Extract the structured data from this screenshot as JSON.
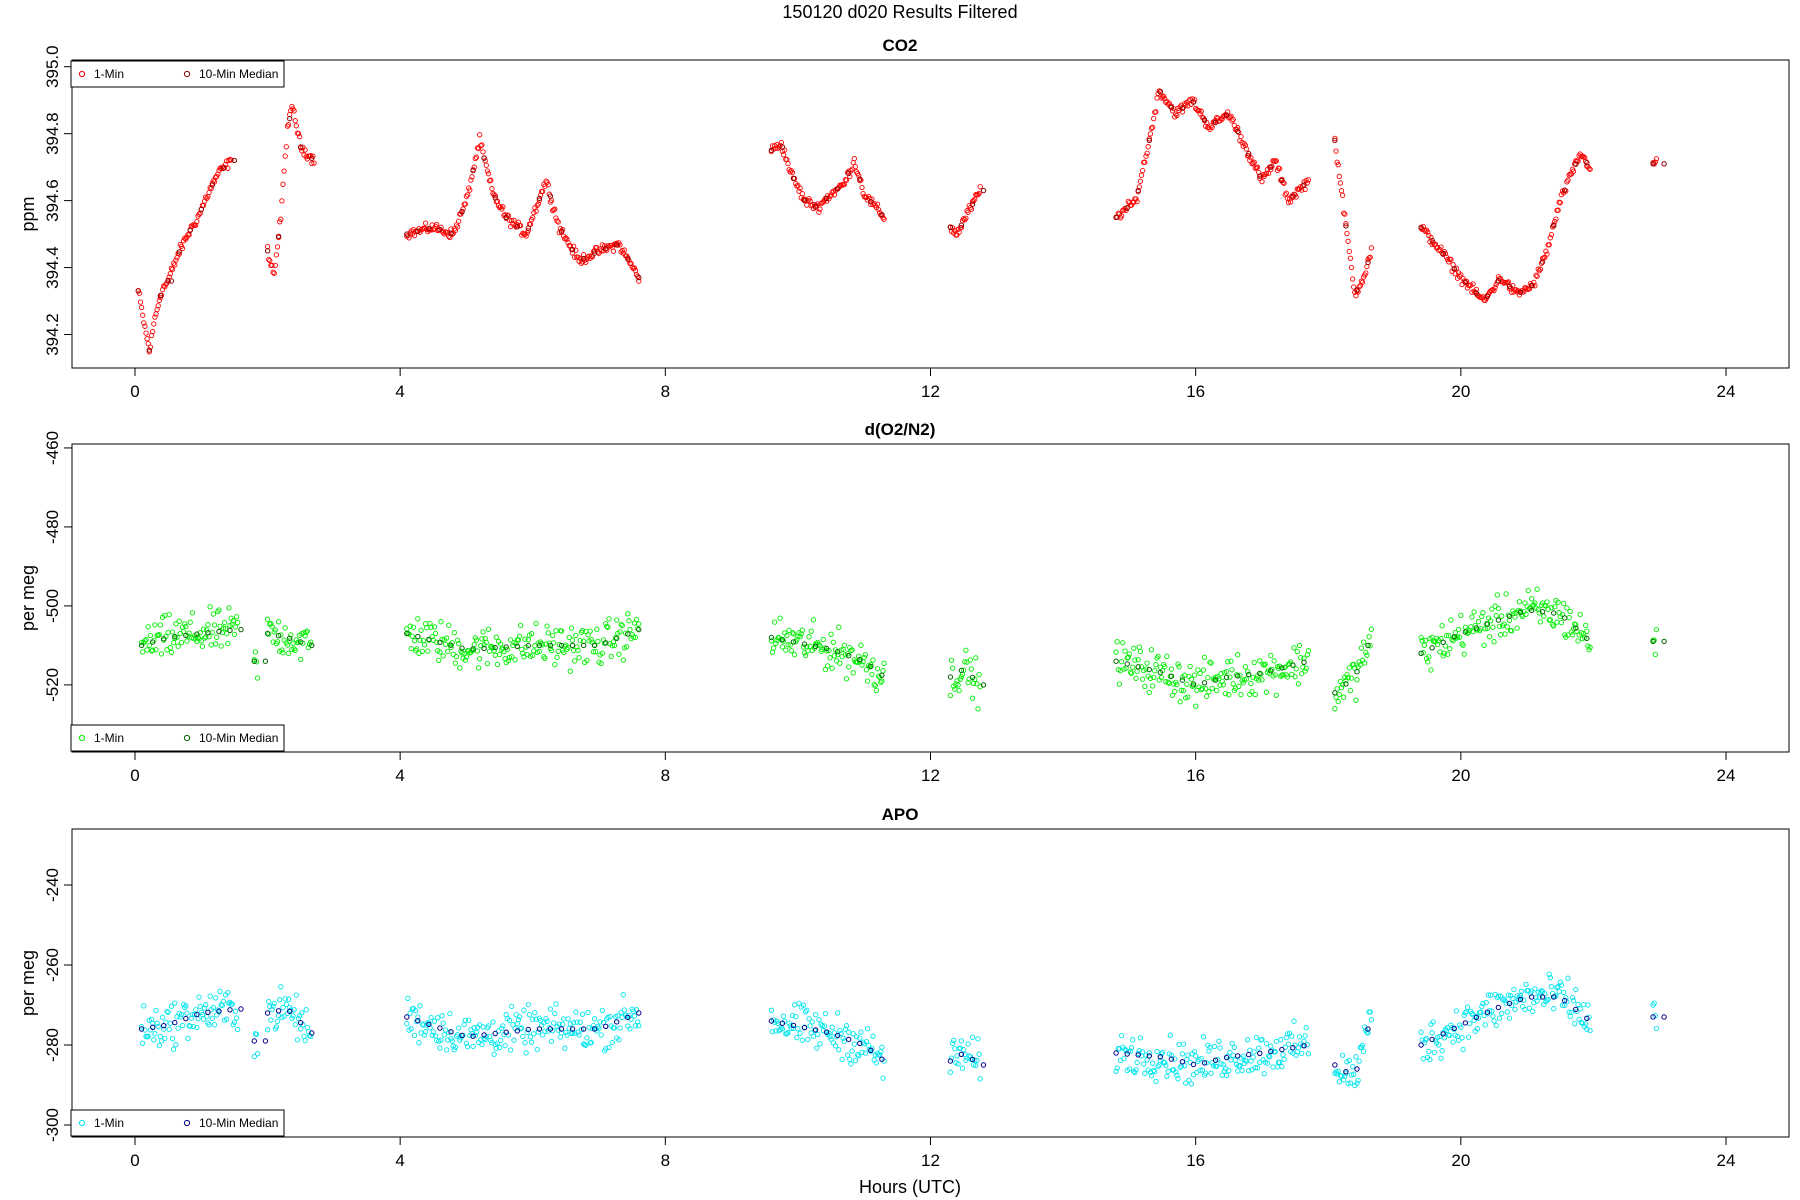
{
  "figure": {
    "title": "150120   d020   Results Filtered",
    "xlabel": "Hours (UTC)"
  },
  "chart_data": [
    {
      "type": "scatter",
      "title": "CO2",
      "xlabel": "",
      "ylabel": "ppm",
      "xlim": [
        -0.95,
        24.95
      ],
      "ylim": [
        394.1,
        395.02
      ],
      "xticks": [
        0,
        4,
        8,
        12,
        16,
        20,
        24
      ],
      "yticks": [
        394.2,
        394.4,
        394.6,
        394.8,
        395.0
      ],
      "ytick_labels": [
        "394.2",
        "394.4",
        "394.6",
        "394.8",
        "395.0"
      ],
      "legend_position": "top-left",
      "legend": [
        "1-Min",
        "10-Min Median"
      ],
      "colors": {
        "one_min": "#ff0000",
        "median": "#8b0000"
      },
      "one_min_scatter": 0.012,
      "median_offset": 0.0,
      "segments": [
        {
          "x_start": 0.05,
          "x_end": 0.5,
          "knots": [
            [
              0.05,
              394.33
            ],
            [
              0.15,
              394.22
            ],
            [
              0.22,
              394.15
            ],
            [
              0.3,
              394.25
            ],
            [
              0.4,
              394.33
            ],
            [
              0.5,
              394.36
            ]
          ]
        },
        {
          "x_start": 0.5,
          "x_end": 1.45,
          "knots": [
            [
              0.5,
              394.36
            ],
            [
              0.65,
              394.44
            ],
            [
              0.8,
              394.5
            ],
            [
              0.95,
              394.55
            ],
            [
              1.1,
              394.62
            ],
            [
              1.25,
              394.68
            ],
            [
              1.45,
              394.72
            ]
          ]
        },
        {
          "x_start": 2.0,
          "x_end": 2.7,
          "knots": [
            [
              2.0,
              394.45
            ],
            [
              2.1,
              394.38
            ],
            [
              2.2,
              394.55
            ],
            [
              2.3,
              394.82
            ],
            [
              2.38,
              394.88
            ],
            [
              2.5,
              394.76
            ],
            [
              2.7,
              394.72
            ]
          ]
        },
        {
          "x_start": 4.1,
          "x_end": 7.6,
          "knots": [
            [
              4.1,
              394.5
            ],
            [
              4.5,
              394.52
            ],
            [
              4.8,
              394.5
            ],
            [
              5.0,
              394.6
            ],
            [
              5.2,
              394.78
            ],
            [
              5.4,
              394.62
            ],
            [
              5.6,
              394.55
            ],
            [
              5.9,
              394.5
            ],
            [
              6.2,
              394.66
            ],
            [
              6.4,
              394.52
            ],
            [
              6.7,
              394.42
            ],
            [
              7.0,
              394.45
            ],
            [
              7.3,
              394.47
            ],
            [
              7.6,
              394.37
            ]
          ]
        },
        {
          "x_start": 9.6,
          "x_end": 11.3,
          "knots": [
            [
              9.6,
              394.75
            ],
            [
              9.75,
              394.77
            ],
            [
              9.9,
              394.68
            ],
            [
              10.1,
              394.6
            ],
            [
              10.3,
              394.58
            ],
            [
              10.5,
              394.62
            ],
            [
              10.7,
              394.65
            ],
            [
              10.85,
              394.72
            ],
            [
              11.0,
              394.62
            ],
            [
              11.3,
              394.55
            ]
          ]
        },
        {
          "x_start": 12.3,
          "x_end": 12.75,
          "knots": [
            [
              12.3,
              394.52
            ],
            [
              12.4,
              394.5
            ],
            [
              12.55,
              394.56
            ],
            [
              12.75,
              394.63
            ]
          ]
        },
        {
          "x_start": 14.8,
          "x_end": 17.7,
          "knots": [
            [
              14.8,
              394.55
            ],
            [
              15.1,
              394.6
            ],
            [
              15.3,
              394.78
            ],
            [
              15.45,
              394.93
            ],
            [
              15.7,
              394.86
            ],
            [
              15.95,
              394.9
            ],
            [
              16.2,
              394.82
            ],
            [
              16.5,
              394.86
            ],
            [
              16.8,
              394.74
            ],
            [
              17.0,
              394.66
            ],
            [
              17.2,
              394.72
            ],
            [
              17.4,
              394.6
            ],
            [
              17.7,
              394.66
            ]
          ]
        },
        {
          "x_start": 18.1,
          "x_end": 18.65,
          "knots": [
            [
              18.1,
              394.78
            ],
            [
              18.25,
              394.55
            ],
            [
              18.4,
              394.32
            ],
            [
              18.55,
              394.38
            ],
            [
              18.65,
              394.45
            ]
          ]
        },
        {
          "x_start": 19.4,
          "x_end": 21.95,
          "knots": [
            [
              19.4,
              394.52
            ],
            [
              19.7,
              394.45
            ],
            [
              20.0,
              394.37
            ],
            [
              20.35,
              394.3
            ],
            [
              20.6,
              394.37
            ],
            [
              20.85,
              394.32
            ],
            [
              21.1,
              394.35
            ],
            [
              21.3,
              394.45
            ],
            [
              21.5,
              394.6
            ],
            [
              21.8,
              394.74
            ],
            [
              21.95,
              394.7
            ]
          ]
        },
        {
          "x_start": 22.9,
          "x_end": 22.95,
          "knots": [
            [
              22.9,
              394.71
            ],
            [
              22.95,
              394.71
            ]
          ]
        }
      ]
    },
    {
      "type": "scatter",
      "title": "d(O2/N2)",
      "xlabel": "",
      "ylabel": "per meg",
      "xlim": [
        -0.95,
        24.95
      ],
      "ylim": [
        -537,
        -459
      ],
      "xticks": [
        0,
        4,
        8,
        12,
        16,
        20,
        24
      ],
      "yticks": [
        -520,
        -500,
        -480,
        -460
      ],
      "ytick_labels": [
        "-520",
        "-500",
        "-480",
        "-460"
      ],
      "legend_position": "bottom-left",
      "legend": [
        "1-Min",
        "10-Min Median"
      ],
      "colors": {
        "one_min": "#00ee00",
        "median": "#006400"
      },
      "one_min_scatter": 4.5,
      "median_offset": 0.0,
      "segments": [
        {
          "x_start": 0.1,
          "x_end": 1.55,
          "knots": [
            [
              0.1,
              -510
            ],
            [
              0.5,
              -508
            ],
            [
              1.0,
              -507
            ],
            [
              1.55,
              -506
            ]
          ]
        },
        {
          "x_start": 1.8,
          "x_end": 1.85,
          "knots": [
            [
              1.8,
              -514
            ],
            [
              1.85,
              -514
            ]
          ]
        },
        {
          "x_start": 2.0,
          "x_end": 2.65,
          "knots": [
            [
              2.0,
              -507
            ],
            [
              2.3,
              -508
            ],
            [
              2.65,
              -510
            ]
          ]
        },
        {
          "x_start": 4.1,
          "x_end": 7.6,
          "knots": [
            [
              4.1,
              -507
            ],
            [
              5.0,
              -511
            ],
            [
              6.0,
              -510
            ],
            [
              7.0,
              -510
            ],
            [
              7.6,
              -506
            ]
          ]
        },
        {
          "x_start": 9.6,
          "x_end": 11.3,
          "knots": [
            [
              9.6,
              -508
            ],
            [
              10.5,
              -511
            ],
            [
              11.0,
              -514
            ],
            [
              11.3,
              -518
            ]
          ]
        },
        {
          "x_start": 12.3,
          "x_end": 12.75,
          "knots": [
            [
              12.3,
              -518
            ],
            [
              12.5,
              -516
            ],
            [
              12.75,
              -520
            ]
          ]
        },
        {
          "x_start": 14.8,
          "x_end": 17.7,
          "knots": [
            [
              14.8,
              -514
            ],
            [
              15.5,
              -517
            ],
            [
              16.0,
              -520
            ],
            [
              16.5,
              -518
            ],
            [
              17.0,
              -517
            ],
            [
              17.7,
              -514
            ]
          ]
        },
        {
          "x_start": 18.1,
          "x_end": 18.65,
          "knots": [
            [
              18.1,
              -522
            ],
            [
              18.4,
              -518
            ],
            [
              18.65,
              -508
            ]
          ]
        },
        {
          "x_start": 19.4,
          "x_end": 21.95,
          "knots": [
            [
              19.4,
              -512
            ],
            [
              20.0,
              -507
            ],
            [
              20.5,
              -504
            ],
            [
              21.0,
              -501
            ],
            [
              21.5,
              -502
            ],
            [
              21.95,
              -509
            ]
          ]
        },
        {
          "x_start": 22.9,
          "x_end": 22.95,
          "knots": [
            [
              22.9,
              -509
            ],
            [
              22.95,
              -509
            ]
          ]
        }
      ]
    },
    {
      "type": "scatter",
      "title": "APO",
      "xlabel": "",
      "ylabel": "per meg",
      "xlim": [
        -0.95,
        24.95
      ],
      "ylim": [
        -303,
        -226
      ],
      "xticks": [
        0,
        4,
        8,
        12,
        16,
        20,
        24
      ],
      "yticks": [
        -300,
        -280,
        -260,
        -240
      ],
      "ytick_labels": [
        "-300",
        "-280",
        "-260",
        "-240"
      ],
      "legend_position": "bottom-left",
      "legend": [
        "1-Min",
        "10-Min Median"
      ],
      "colors": {
        "one_min": "#00e5ee",
        "median": "#00008b"
      },
      "one_min_scatter": 4.5,
      "median_offset": 0.0,
      "segments": [
        {
          "x_start": 0.1,
          "x_end": 1.55,
          "knots": [
            [
              0.1,
              -276
            ],
            [
              0.5,
              -275
            ],
            [
              1.0,
              -272
            ],
            [
              1.55,
              -271
            ]
          ]
        },
        {
          "x_start": 1.8,
          "x_end": 1.85,
          "knots": [
            [
              1.8,
              -279
            ],
            [
              1.85,
              -279
            ]
          ]
        },
        {
          "x_start": 2.0,
          "x_end": 2.65,
          "knots": [
            [
              2.0,
              -272
            ],
            [
              2.3,
              -271
            ],
            [
              2.65,
              -277
            ]
          ]
        },
        {
          "x_start": 4.1,
          "x_end": 7.6,
          "knots": [
            [
              4.1,
              -273
            ],
            [
              5.0,
              -278
            ],
            [
              6.0,
              -276
            ],
            [
              7.0,
              -276
            ],
            [
              7.6,
              -272
            ]
          ]
        },
        {
          "x_start": 9.6,
          "x_end": 11.3,
          "knots": [
            [
              9.6,
              -274
            ],
            [
              10.5,
              -277
            ],
            [
              11.0,
              -280
            ],
            [
              11.3,
              -284
            ]
          ]
        },
        {
          "x_start": 12.3,
          "x_end": 12.75,
          "knots": [
            [
              12.3,
              -284
            ],
            [
              12.5,
              -282
            ],
            [
              12.75,
              -285
            ]
          ]
        },
        {
          "x_start": 14.8,
          "x_end": 17.7,
          "knots": [
            [
              14.8,
              -282
            ],
            [
              15.5,
              -283
            ],
            [
              16.0,
              -285
            ],
            [
              16.5,
              -283
            ],
            [
              17.0,
              -282
            ],
            [
              17.7,
              -280
            ]
          ]
        },
        {
          "x_start": 18.1,
          "x_end": 18.65,
          "knots": [
            [
              18.1,
              -285
            ],
            [
              18.4,
              -288
            ],
            [
              18.65,
              -273
            ]
          ]
        },
        {
          "x_start": 19.4,
          "x_end": 21.95,
          "knots": [
            [
              19.4,
              -280
            ],
            [
              20.0,
              -275
            ],
            [
              20.5,
              -271
            ],
            [
              21.0,
              -268
            ],
            [
              21.5,
              -268
            ],
            [
              21.95,
              -274
            ]
          ]
        },
        {
          "x_start": 22.9,
          "x_end": 22.95,
          "knots": [
            [
              22.9,
              -273
            ],
            [
              22.95,
              -273
            ]
          ]
        }
      ]
    }
  ]
}
